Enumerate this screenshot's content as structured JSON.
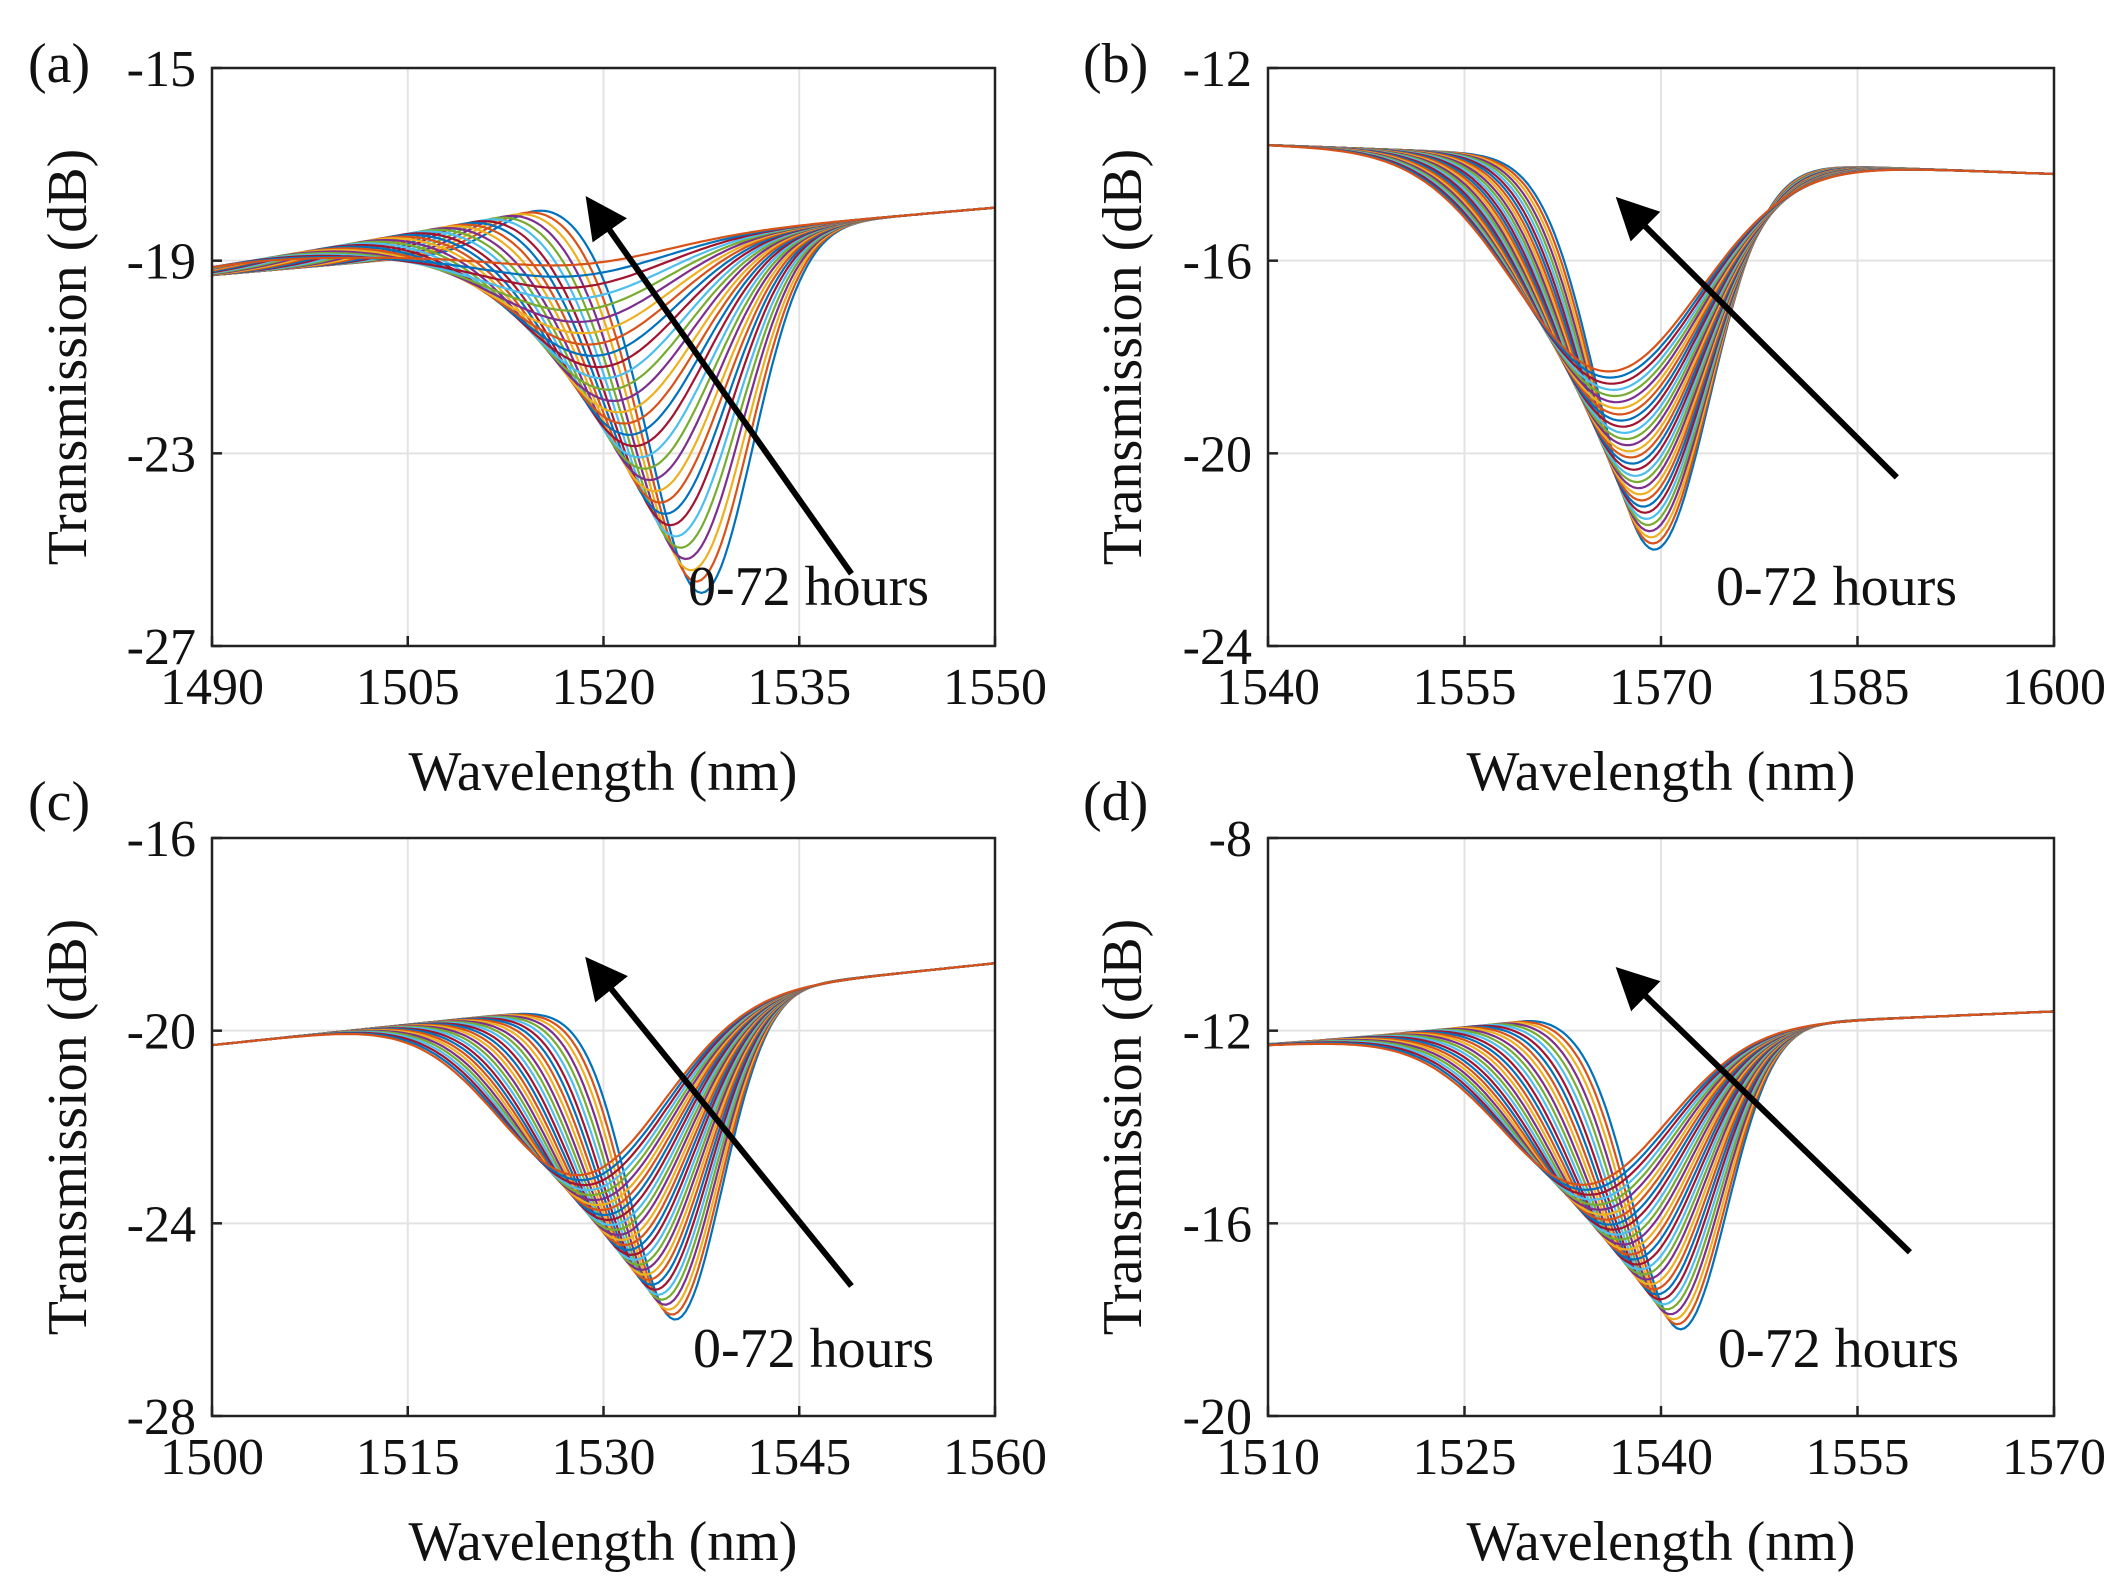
{
  "chart_data": [
    {
      "panel": "(a)",
      "type": "line",
      "xlabel": "Wavelength (nm)",
      "ylabel": "Transmission (dB)",
      "xlim": [
        1490,
        1550
      ],
      "ylim": [
        -27,
        -15
      ],
      "xticks": [
        1490,
        1505,
        1520,
        1535,
        1550
      ],
      "yticks": [
        -15,
        -19,
        -23,
        -27
      ],
      "xtick_labels": [
        "1490",
        "1505",
        "1520",
        "1535",
        "1550"
      ],
      "ytick_labels": [
        "-15",
        "-19",
        "-23",
        "-27"
      ],
      "grid": true,
      "annotation": "0-72 hours",
      "arrow": {
        "from": [
          1539,
          -25.5
        ],
        "to": [
          1519,
          -17.8
        ]
      },
      "curve_family": {
        "count": 30,
        "dip_center_start": 1527.5,
        "dip_center_end": 1516,
        "dip_depth_start": -25.9,
        "dip_depth_end": -19.1,
        "dip_width_start": 5.5,
        "dip_width_end": 10,
        "left_value": -19.3,
        "right_value": -17.9,
        "left_bump_start": 0.8,
        "left_bump_end": 0.2
      }
    },
    {
      "panel": "(b)",
      "type": "line",
      "xlabel": "Wavelength (nm)",
      "ylabel": "Transmission (dB)",
      "xlim": [
        1540,
        1600
      ],
      "ylim": [
        -24,
        -12
      ],
      "xticks": [
        1540,
        1555,
        1570,
        1585,
        1600
      ],
      "yticks": [
        -12,
        -16,
        -20,
        -24
      ],
      "xtick_labels": [
        "1540",
        "1555",
        "1570",
        "1585",
        "1600"
      ],
      "ytick_labels": [
        "-12",
        "-16",
        "-20",
        "-24"
      ],
      "grid": true,
      "annotation": "0-72 hours",
      "arrow": {
        "from": [
          1588,
          -20.5
        ],
        "to": [
          1567,
          -14.8
        ]
      },
      "curve_family": {
        "count": 30,
        "dip_center_start": 1569.5,
        "dip_center_end": 1566,
        "dip_depth_start": -22.0,
        "dip_depth_end": -18.3,
        "dip_width_start": 6,
        "dip_width_end": 10,
        "left_value": -13.6,
        "right_value": -14.2,
        "left_bump_start": 0,
        "left_bump_end": 0
      }
    },
    {
      "panel": "(c)",
      "type": "line",
      "xlabel": "Wavelength (nm)",
      "ylabel": "Transmission (dB)",
      "xlim": [
        1500,
        1560
      ],
      "ylim": [
        -28,
        -16
      ],
      "xticks": [
        1500,
        1515,
        1530,
        1545,
        1560
      ],
      "yticks": [
        -16,
        -20,
        -24,
        -28
      ],
      "xtick_labels": [
        "1500",
        "1515",
        "1530",
        "1545",
        "1560"
      ],
      "ytick_labels": [
        "-16",
        "-20",
        "-24",
        "-28"
      ],
      "grid": true,
      "annotation": "0-72 hours",
      "arrow": {
        "from": [
          1549,
          -25.3
        ],
        "to": [
          1529,
          -18.6
        ]
      },
      "curve_family": {
        "count": 30,
        "dip_center_start": 1535.5,
        "dip_center_end": 1528,
        "dip_depth_start": -26.0,
        "dip_depth_end": -23.0,
        "dip_width_start": 5,
        "dip_width_end": 9,
        "left_value": -20.3,
        "right_value": -18.6,
        "left_bump_start": 0,
        "left_bump_end": 0
      }
    },
    {
      "panel": "(d)",
      "type": "line",
      "xlabel": "Wavelength (nm)",
      "ylabel": "Transmission (dB)",
      "xlim": [
        1510,
        1570
      ],
      "ylim": [
        -20,
        -8
      ],
      "xticks": [
        1510,
        1525,
        1540,
        1555,
        1570
      ],
      "yticks": [
        -8,
        -12,
        -16,
        -20
      ],
      "xtick_labels": [
        "1510",
        "1525",
        "1540",
        "1555",
        "1570"
      ],
      "ytick_labels": [
        "-8",
        "-12",
        "-16",
        "-20"
      ],
      "grid": true,
      "annotation": "0-72 hours",
      "arrow": {
        "from": [
          1559,
          -16.6
        ],
        "to": [
          1537,
          -10.8
        ]
      },
      "curve_family": {
        "count": 30,
        "dip_center_start": 1541.5,
        "dip_center_end": 1534,
        "dip_depth_start": -18.2,
        "dip_depth_end": -15.2,
        "dip_width_start": 5,
        "dip_width_end": 9,
        "left_value": -12.3,
        "right_value": -11.6,
        "left_bump_start": 0.3,
        "left_bump_end": 0
      }
    }
  ],
  "colors": [
    "#0072BD",
    "#D95319",
    "#EDB120",
    "#7E2F8E",
    "#77AC30",
    "#4DBEEE",
    "#A2142F"
  ]
}
